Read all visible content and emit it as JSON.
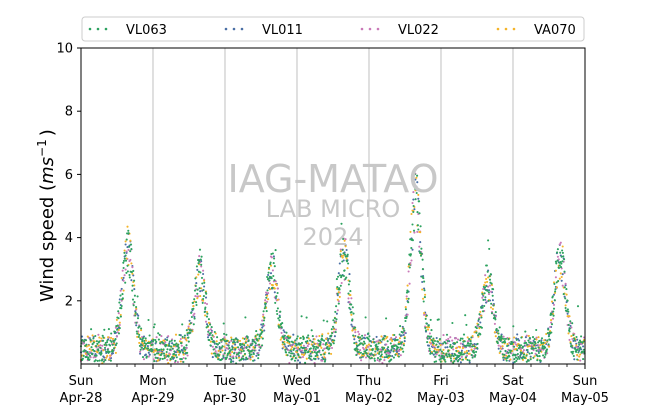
{
  "chart_data": {
    "type": "scatter",
    "ylabel_main": "Wind speed (",
    "ylabel_unit": "ms",
    "ylabel_exp": "−1",
    "ylabel_close": ")",
    "ylim": [
      0,
      10
    ],
    "yticks": [
      2,
      4,
      6,
      8,
      10
    ],
    "x_range_days": [
      "2024-04-28",
      "2024-05-05"
    ],
    "xticks": [
      {
        "day": "Sun",
        "date": "Apr-28"
      },
      {
        "day": "Mon",
        "date": "Apr-29"
      },
      {
        "day": "Tue",
        "date": "Apr-30"
      },
      {
        "day": "Wed",
        "date": "May-01"
      },
      {
        "day": "Thu",
        "date": "May-02"
      },
      {
        "day": "Fri",
        "date": "May-03"
      },
      {
        "day": "Sat",
        "date": "May-04"
      },
      {
        "day": "Sun",
        "date": "May-05"
      }
    ],
    "grid": "vertical at day boundaries",
    "legend_position": "top",
    "series": [
      {
        "name": "VL063",
        "color": "#2ca25f"
      },
      {
        "name": "VL011",
        "color": "#4a6fa5"
      },
      {
        "name": "VL022",
        "color": "#c979b8"
      },
      {
        "name": "VA070",
        "color": "#f5b428"
      }
    ],
    "daily_profile_note_free": true,
    "daily_peaks": [
      {
        "day": 0,
        "peak": 3.6
      },
      {
        "day": 1,
        "peak": 2.8
      },
      {
        "day": 2,
        "peak": 3.0
      },
      {
        "day": 3,
        "peak": 3.4
      },
      {
        "day": 4,
        "peak": 5.2
      },
      {
        "day": 5,
        "peak": 2.6
      },
      {
        "day": 6,
        "peak": 3.4
      }
    ],
    "watermark": [
      "IAG-MATAO",
      "LAB MICRO",
      "2024"
    ]
  }
}
